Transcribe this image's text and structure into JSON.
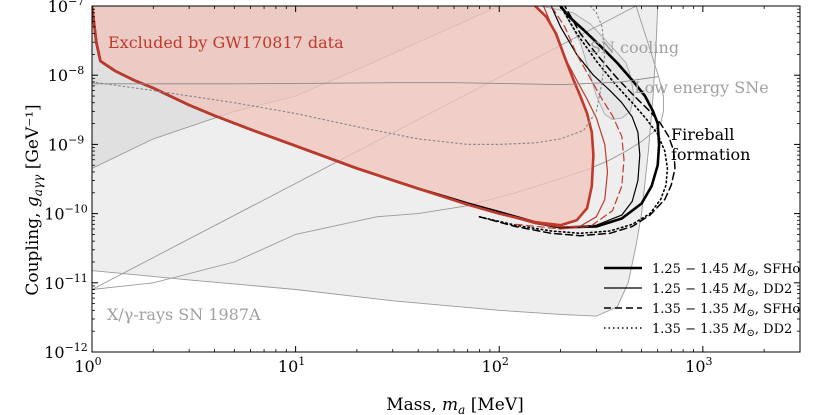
{
  "chart_data": {
    "type": "line",
    "xlabel": "Mass, m_a [MeV]",
    "ylabel": "Coupling, g_aγγ [GeV⁻¹]",
    "xscale": "log",
    "yscale": "log",
    "xlim": [
      1,
      3000
    ],
    "ylim": [
      1e-12,
      1e-07
    ],
    "x_ticks": [
      {
        "value": 1,
        "label": "10",
        "exp": "0"
      },
      {
        "value": 10,
        "label": "10",
        "exp": "1"
      },
      {
        "value": 100,
        "label": "10",
        "exp": "2"
      },
      {
        "value": 1000,
        "label": "10",
        "exp": "3"
      }
    ],
    "y_ticks": [
      {
        "value": 1e-12,
        "label": "10",
        "exp": "−12"
      },
      {
        "value": 1e-11,
        "label": "10",
        "exp": "−11"
      },
      {
        "value": 1e-10,
        "label": "10",
        "exp": "−10"
      },
      {
        "value": 1e-09,
        "label": "10",
        "exp": "−9"
      },
      {
        "value": 1e-08,
        "label": "10",
        "exp": "−8"
      },
      {
        "value": 1e-07,
        "label": "10",
        "exp": "−7"
      }
    ],
    "annotations": {
      "excluded": "Excluded by GW170817 data",
      "sn_cooling": "SN cooling",
      "low_energy": "Low energy SNe",
      "fireball_1": "Fireball",
      "fireball_2": "formation",
      "xray": "X/γ-rays SN 1987A"
    },
    "colors": {
      "excluded": "#c0392b",
      "excluded_fill": "#f2c4bc",
      "bg_fill": "#ebebeb",
      "bg_edge": "#9a9a9a",
      "text_gray": "#a0a0a0"
    },
    "regions": [
      {
        "name": "x-ray-sn1987a",
        "points": [
          [
            1,
            1.5e-11
          ],
          [
            3,
            1.1e-11
          ],
          [
            10,
            8e-12
          ],
          [
            30,
            5.5e-12
          ],
          [
            100,
            4e-12
          ],
          [
            200,
            3.5e-12
          ],
          [
            300,
            3.3e-12
          ],
          [
            380,
            4.5e-12
          ],
          [
            430,
            1e-11
          ],
          [
            470,
            3.5e-11
          ],
          [
            500,
            1e-10
          ],
          [
            540,
            8e-10
          ],
          [
            570,
            5e-09
          ],
          [
            590,
            3e-08
          ],
          [
            600,
            1e-07
          ],
          [
            1,
            1e-07
          ]
        ]
      },
      {
        "name": "upper-gray-band",
        "points": [
          [
            1,
            4.5e-10
          ],
          [
            2,
            1.2e-09
          ],
          [
            5,
            3e-09
          ],
          [
            10,
            5e-09
          ],
          [
            20,
            1.2e-08
          ],
          [
            50,
            4e-08
          ],
          [
            100,
            1e-07
          ],
          [
            1,
            1e-07
          ]
        ]
      },
      {
        "name": "sn-cooling",
        "points": [
          [
            160,
            1e-07
          ],
          [
            230,
            8e-08
          ],
          [
            280,
            5.5e-08
          ],
          [
            330,
            3.3e-08
          ],
          [
            380,
            2.1e-08
          ],
          [
            420,
            1.5e-08
          ],
          [
            440,
            1e-08
          ],
          [
            460,
            5e-09
          ],
          [
            440,
            3e-09
          ],
          [
            400,
            2.4e-09
          ],
          [
            360,
            2.3e-09
          ],
          [
            330,
            2.7e-09
          ],
          [
            300,
            5e-09
          ],
          [
            280,
            1e-08
          ],
          [
            250,
            3e-08
          ],
          [
            220,
            6e-08
          ],
          [
            200,
            1e-07
          ]
        ]
      },
      {
        "name": "low-energy-sne",
        "points": [
          [
            470,
            1e-07
          ],
          [
            560,
            2e-08
          ],
          [
            610,
            9e-09
          ],
          [
            640,
            5e-09
          ],
          [
            640,
            3e-09
          ],
          [
            620,
            2e-09
          ],
          [
            570,
            1.5e-09
          ],
          [
            500,
            1.1e-09
          ],
          [
            420,
            8e-10
          ],
          [
            350,
            6e-10
          ],
          [
            280,
            4.5e-10
          ],
          [
            200,
            3.2e-10
          ],
          [
            120,
            2e-10
          ],
          [
            70,
            1.3e-10
          ],
          [
            40,
            1e-10
          ],
          [
            25,
            9e-11
          ],
          [
            10,
            5e-11
          ],
          [
            5,
            2e-11
          ],
          [
            2,
            1e-11
          ],
          [
            1,
            8e-12
          ]
        ]
      }
    ],
    "series": [
      {
        "name": "1.25 − 1.45 M_⊙, SFHo",
        "style": "thick-solid",
        "color": "#000000",
        "x": [
          1,
          1.05,
          1.1,
          1.3,
          1.6,
          2,
          3,
          4,
          6,
          10,
          20,
          40,
          70,
          100,
          150,
          200,
          300,
          400,
          500,
          560,
          600,
          610,
          600,
          570,
          520,
          450,
          380,
          320,
          260,
          220,
          200
        ],
        "y": [
          1e-07,
          3e-08,
          1.6e-08,
          1.15e-08,
          8.5e-09,
          6.5e-09,
          3.7e-09,
          2.6e-09,
          1.65e-09,
          9.5e-10,
          4.5e-10,
          2.3e-10,
          1.4e-10,
          1.05e-10,
          7.5e-11,
          6.3e-11,
          6.5e-11,
          8.5e-11,
          1.4e-10,
          2.5e-10,
          5e-10,
          1e-09,
          2e-09,
          3e-09,
          5e-09,
          8.5e-09,
          1.5e-08,
          2.5e-08,
          4.5e-08,
          7e-08,
          1e-07
        ]
      },
      {
        "name": "1.25 − 1.45 M_⊙, DD2",
        "style": "thin-solid",
        "color": "#000000",
        "x": [
          1,
          1.05,
          1.1,
          1.3,
          1.6,
          2,
          3,
          4,
          6,
          10,
          20,
          40,
          70,
          100,
          150,
          200,
          300,
          400,
          450,
          480,
          490,
          480,
          450,
          400,
          350,
          290,
          240,
          200,
          180
        ],
        "y": [
          1e-07,
          3e-08,
          1.6e-08,
          1.15e-08,
          8.5e-09,
          6.5e-09,
          3.7e-09,
          2.6e-09,
          1.65e-09,
          9.5e-10,
          4.5e-10,
          2.3e-10,
          1.35e-10,
          1e-10,
          7.2e-11,
          6.2e-11,
          6.8e-11,
          9.5e-11,
          1.5e-10,
          3e-10,
          7e-10,
          1.5e-09,
          2.5e-09,
          4e-09,
          6e-09,
          1e-08,
          2e-08,
          5e-08,
          1e-07
        ]
      },
      {
        "name": "1.35 − 1.35 M_⊙, SFHo",
        "style": "dashed",
        "color": "#000000",
        "x": [
          80,
          120,
          180,
          250,
          350,
          450,
          550,
          650,
          700,
          730,
          720,
          680,
          620,
          550,
          460,
          380,
          310,
          250,
          210
        ],
        "y": [
          9e-11,
          6.5e-11,
          5.2e-11,
          4.8e-11,
          5.2e-11,
          6.5e-11,
          9.5e-11,
          1.6e-10,
          2.6e-10,
          4.5e-10,
          8e-10,
          1.3e-09,
          2e-09,
          3e-09,
          5e-09,
          9e-09,
          1.8e-08,
          4e-08,
          1e-07
        ]
      },
      {
        "name": "1.35 − 1.35 M_⊙, DD2",
        "style": "dotted",
        "color": "#000000",
        "x": [
          80,
          120,
          180,
          250,
          350,
          450,
          550,
          620,
          660,
          670,
          650,
          600,
          530,
          450,
          370,
          300,
          240,
          200
        ],
        "y": [
          9e-11,
          6.8e-11,
          5.6e-11,
          5.2e-11,
          5.6e-11,
          7e-11,
          1e-10,
          1.6e-10,
          2.6e-10,
          4.5e-10,
          8e-10,
          1.4e-09,
          2.3e-09,
          4e-09,
          7.5e-09,
          1.6e-08,
          4e-08,
          1e-07
        ]
      },
      {
        "name": "excluded-thick",
        "style": "red-thick",
        "color": "#c0392b",
        "x": [
          1,
          1.05,
          1.1,
          1.3,
          1.6,
          2,
          3,
          4,
          6,
          10,
          20,
          40,
          70,
          100,
          150,
          200,
          240,
          270,
          285,
          290,
          285,
          270,
          250,
          230,
          210,
          190,
          170,
          150
        ],
        "y": [
          1e-07,
          3e-08,
          1.6e-08,
          1.15e-08,
          8.5e-09,
          6.5e-09,
          3.7e-09,
          2.6e-09,
          1.65e-09,
          9.5e-10,
          4.5e-10,
          2.3e-10,
          1.35e-10,
          1e-10,
          7.5e-11,
          6.8e-11,
          8e-11,
          1.2e-10,
          2.5e-10,
          7e-10,
          1.5e-09,
          2.8e-09,
          5e-09,
          9e-09,
          1.8e-08,
          4e-08,
          7e-08,
          1e-07
        ]
      },
      {
        "name": "excluded-thin",
        "style": "red-thin",
        "color": "#c0392b",
        "x": [
          1,
          1.05,
          1.1,
          1.3,
          1.6,
          2,
          3,
          4,
          6,
          10,
          20,
          40,
          70,
          100,
          150,
          200,
          250,
          300,
          330,
          340,
          330,
          300,
          270,
          240,
          210,
          185,
          165
        ],
        "y": [
          1e-07,
          3e-08,
          1.6e-08,
          1.15e-08,
          8.5e-09,
          6.5e-09,
          3.7e-09,
          2.6e-09,
          1.65e-09,
          9.5e-10,
          4.5e-10,
          2.3e-10,
          1.35e-10,
          1e-10,
          7.2e-11,
          6.4e-11,
          6.6e-11,
          9e-11,
          1.6e-10,
          4e-10,
          1e-09,
          2.4e-09,
          4.5e-09,
          8.5e-09,
          1.8e-08,
          4.5e-08,
          1e-07
        ]
      },
      {
        "name": "excluded-dashed",
        "style": "red-dashed",
        "color": "#c0392b",
        "x": [
          120,
          200,
          280,
          360,
          400,
          410,
          400,
          360,
          320,
          280,
          240,
          210,
          180
        ],
        "y": [
          7e-11,
          6e-11,
          6.5e-11,
          1.1e-10,
          2.5e-10,
          6e-10,
          1.3e-09,
          2.6e-09,
          4.5e-09,
          9e-09,
          2e-08,
          5e-08,
          1e-07
        ]
      },
      {
        "name": "sn-cooling-dotted",
        "style": "gray-dotted",
        "color": "#8a8a8a",
        "x": [
          1,
          2,
          5,
          10,
          20,
          40,
          70,
          100,
          150,
          200,
          260,
          300,
          320,
          330,
          320,
          300,
          280
        ],
        "y": [
          8e-09,
          6e-09,
          4e-09,
          2.8e-09,
          1.8e-09,
          1.2e-09,
          1e-09,
          1e-09,
          1.05e-09,
          1.2e-09,
          1.6e-09,
          3e-09,
          8e-09,
          2e-08,
          5e-08,
          8e-08,
          1e-07
        ]
      },
      {
        "name": "gray-horizontal",
        "style": "gray-thin",
        "color": "#8a8a8a",
        "x": [
          1,
          5,
          10,
          30,
          60,
          100,
          200,
          400,
          600
        ],
        "y": [
          7.5e-09,
          7.5e-09,
          7.6e-09,
          7.8e-09,
          7.8e-09,
          7.6e-09,
          7.3e-09,
          8e-09,
          9.5e-09
        ]
      }
    ],
    "legend": {
      "placement": "lower-right",
      "entries": [
        {
          "style": "thick-solid",
          "text": "1.25 − 1.45 M_⊙, SFHo"
        },
        {
          "style": "thin-solid",
          "text": "1.25 − 1.45 M_⊙, DD2"
        },
        {
          "style": "dashed",
          "text": "1.35 − 1.35 M_⊙, SFHo"
        },
        {
          "style": "dotted",
          "text": "1.35 − 1.35 M_⊙, DD2"
        }
      ]
    },
    "grid": false
  }
}
